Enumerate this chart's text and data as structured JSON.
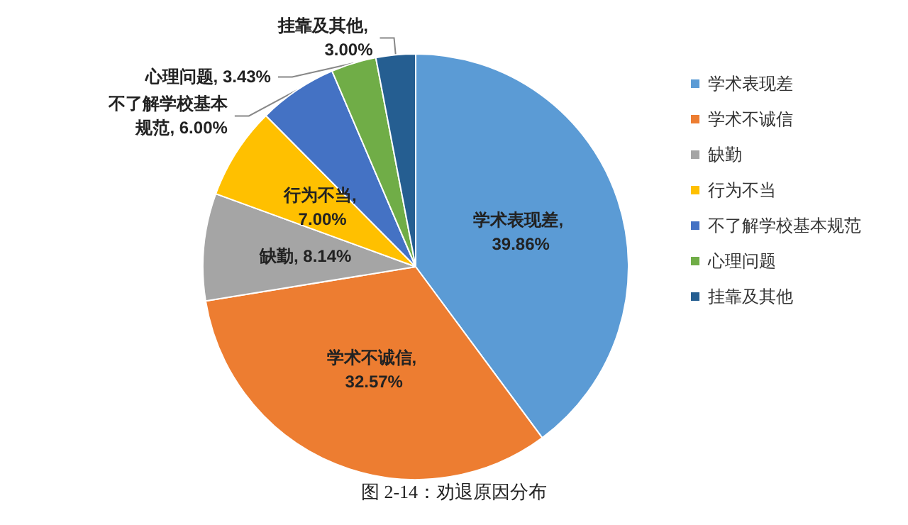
{
  "chart_data": {
    "type": "pie",
    "categories": [
      "学术表现差",
      "学术不诚信",
      "缺勤",
      "行为不当",
      "不了解学校基本规范",
      "心理问题",
      "挂靠及其他"
    ],
    "values": [
      39.86,
      32.57,
      8.14,
      7.0,
      6.0,
      3.43,
      3.0
    ],
    "colors": [
      "#5b9bd5",
      "#ed7d31",
      "#a5a5a5",
      "#ffc000",
      "#4472c4",
      "#70ad47",
      "#255e91"
    ],
    "value_labels": [
      "学术表现差, 39.86%",
      "学术不诚信, 32.57%",
      "缺勤, 8.14%",
      "行为不当, 7.00%",
      "不了解学校基本规范, 6.00%",
      "心理问题, 3.43%",
      "挂靠及其他, 3.00%"
    ],
    "legend": "right",
    "annotations": [
      "图 2-14：劝退原因分布"
    ]
  }
}
